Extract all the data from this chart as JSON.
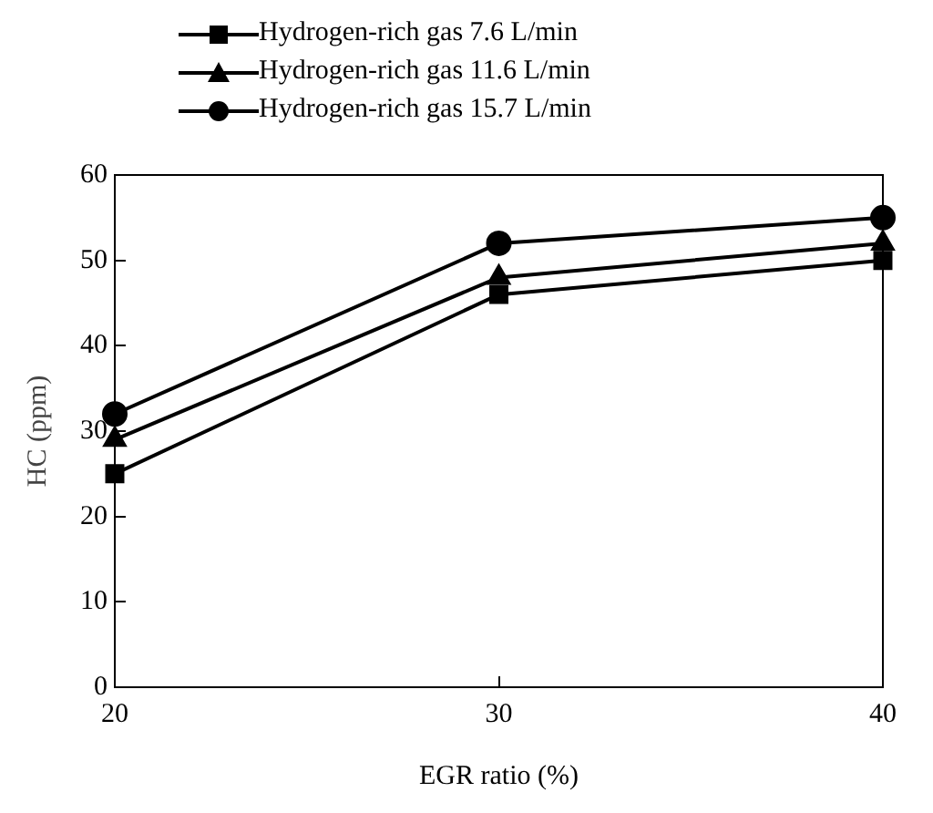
{
  "chart_data": {
    "type": "line",
    "xlabel": "EGR ratio (%)",
    "ylabel": "HC (ppm)",
    "x": [
      20,
      30,
      40
    ],
    "series": [
      {
        "name": "Hydrogen-rich gas 7.6 L/min",
        "color": "#000000",
        "marker": "square",
        "values": [
          25,
          46,
          50
        ]
      },
      {
        "name": "Hydrogen-rich gas 11.6 L/min",
        "color": "#000000",
        "marker": "triangle",
        "values": [
          29,
          48,
          52
        ]
      },
      {
        "name": "Hydrogen-rich gas 15.7 L/min",
        "color": "#000000",
        "marker": "circle",
        "values": [
          32,
          52,
          55
        ]
      }
    ],
    "xlim": [
      20,
      40
    ],
    "xticks": [
      20,
      30,
      40
    ],
    "ylim": [
      0,
      60
    ],
    "yticks": [
      0,
      10,
      20,
      30,
      40,
      50,
      60
    ],
    "grid": false,
    "legend": "top",
    "line_style": "solid"
  }
}
